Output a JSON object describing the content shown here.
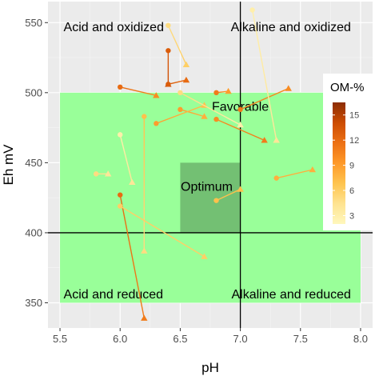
{
  "chart_data": {
    "type": "scatter",
    "xlabel": "pH",
    "ylabel": "Eh mV",
    "xlim": [
      5.4,
      8.1
    ],
    "ylim": [
      332,
      565
    ],
    "x_ticks": [
      5.5,
      6.0,
      6.5,
      7.0,
      7.5,
      8.0
    ],
    "x_tick_labels": [
      "5.5",
      "6.0",
      "6.5",
      "7.0",
      "7.5",
      "8.0"
    ],
    "y_ticks": [
      350,
      400,
      450,
      500,
      550
    ],
    "y_tick_labels": [
      "350",
      "400",
      "450",
      "500",
      "550"
    ],
    "grid": true,
    "background": "#ebebeb",
    "reference_lines": {
      "x": 7.0,
      "y": 400
    },
    "zones": [
      {
        "name": "favorable",
        "x": [
          5.5,
          8.0
        ],
        "y": [
          350,
          500
        ],
        "color": "#99ff99"
      },
      {
        "name": "optimum",
        "x": [
          6.5,
          7.0
        ],
        "y": [
          400,
          450
        ],
        "color": "#73c073"
      }
    ],
    "region_labels": [
      {
        "text": "Acid and oxidized",
        "x": 5.53,
        "y": 544,
        "anchor": "start"
      },
      {
        "text": "Alkaline and oxidized",
        "x": 7.92,
        "y": 544,
        "anchor": "end"
      },
      {
        "text": "Favorable",
        "x": 7.0,
        "y": 487,
        "anchor": "middle"
      },
      {
        "text": "Optimum",
        "x": 6.72,
        "y": 430,
        "anchor": "middle"
      },
      {
        "text": "Acid and reduced",
        "x": 5.53,
        "y": 353,
        "anchor": "start"
      },
      {
        "text": "Alkaline and reduced",
        "x": 7.92,
        "y": 353,
        "anchor": "end"
      }
    ],
    "legend": {
      "title": "OM-%",
      "position": "right",
      "ticks": [
        3,
        6,
        9,
        12,
        15
      ],
      "tick_labels": [
        "3",
        "6",
        "9",
        "12",
        "15"
      ],
      "range": [
        2,
        16.5
      ],
      "colors": [
        "#fff7bc",
        "#fee391",
        "#fec44f",
        "#fe9929",
        "#ec7014",
        "#cc4c02",
        "#8c2d04"
      ]
    },
    "series": [
      {
        "start": {
          "x": 6.4,
          "y": 530,
          "om": 13
        },
        "end": {
          "x": 6.4,
          "y": 506,
          "om": 14
        }
      },
      {
        "start": {
          "x": 6.0,
          "y": 504,
          "om": 12
        },
        "end": {
          "x": 6.3,
          "y": 498,
          "om": 10
        }
      },
      {
        "start": {
          "x": 6.4,
          "y": 506,
          "om": 13
        },
        "end": {
          "x": 6.55,
          "y": 509,
          "om": 12
        }
      },
      {
        "start": {
          "x": 6.4,
          "y": 548,
          "om": 5
        },
        "end": {
          "x": 6.55,
          "y": 520,
          "om": 6
        }
      },
      {
        "start": {
          "x": 6.8,
          "y": 500,
          "om": 11
        },
        "end": {
          "x": 6.9,
          "y": 501,
          "om": 9
        }
      },
      {
        "start": {
          "x": 6.5,
          "y": 488,
          "om": 9
        },
        "end": {
          "x": 6.7,
          "y": 483,
          "om": 8
        }
      },
      {
        "start": {
          "x": 6.3,
          "y": 478,
          "om": 9
        },
        "end": {
          "x": 6.7,
          "y": 491,
          "om": 7
        }
      },
      {
        "start": {
          "x": 6.5,
          "y": 500,
          "om": 5
        },
        "end": {
          "x": 7.0,
          "y": 477,
          "om": 3
        }
      },
      {
        "start": {
          "x": 6.8,
          "y": 481,
          "om": 10
        },
        "end": {
          "x": 7.2,
          "y": 466,
          "om": 11
        }
      },
      {
        "start": {
          "x": 7.0,
          "y": 488,
          "om": 11
        },
        "end": {
          "x": 7.4,
          "y": 503,
          "om": 10
        }
      },
      {
        "start": {
          "x": 7.1,
          "y": 559,
          "om": 3
        },
        "end": {
          "x": 7.3,
          "y": 466,
          "om": 4
        }
      },
      {
        "start": {
          "x": 7.3,
          "y": 439,
          "om": 8
        },
        "end": {
          "x": 7.6,
          "y": 445,
          "om": 8
        }
      },
      {
        "start": {
          "x": 5.8,
          "y": 442,
          "om": 5
        },
        "end": {
          "x": 5.9,
          "y": 442,
          "om": 4
        }
      },
      {
        "start": {
          "x": 6.0,
          "y": 470,
          "om": 3
        },
        "end": {
          "x": 6.1,
          "y": 436,
          "om": 4
        }
      },
      {
        "start": {
          "x": 6.2,
          "y": 483,
          "om": 7
        },
        "end": {
          "x": 6.2,
          "y": 387,
          "om": 5
        }
      },
      {
        "start": {
          "x": 6.0,
          "y": 427,
          "om": 12
        },
        "end": {
          "x": 6.2,
          "y": 339,
          "om": 11
        }
      },
      {
        "start": {
          "x": 6.0,
          "y": 419,
          "om": 6
        },
        "end": {
          "x": 6.7,
          "y": 383,
          "om": 6
        }
      },
      {
        "start": {
          "x": 6.8,
          "y": 423,
          "om": 7
        },
        "end": {
          "x": 7.0,
          "y": 431,
          "om": 7
        }
      }
    ]
  }
}
